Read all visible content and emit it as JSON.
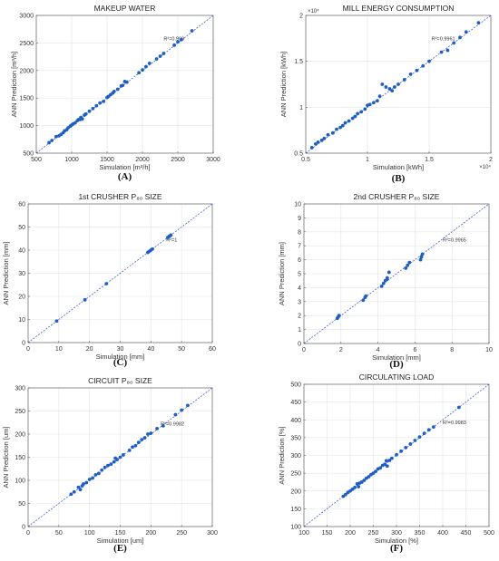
{
  "chart_data": [
    {
      "type": "scatter",
      "letter": "(A)",
      "title": "MAKEUP WATER",
      "xlabel": "Simulation [m³/h]",
      "ylabel": "ANN Prediction [m³/h]",
      "xlim": [
        500,
        3000
      ],
      "ylim": [
        500,
        3000
      ],
      "xticks": [
        500,
        1000,
        1500,
        2000,
        2500,
        3000
      ],
      "yticks": [
        500,
        1000,
        1500,
        2000,
        2500,
        3000
      ],
      "annotation": "R²=0.999",
      "grid": true,
      "points": [
        [
          680,
          690
        ],
        [
          720,
          730
        ],
        [
          780,
          800
        ],
        [
          820,
          815
        ],
        [
          850,
          840
        ],
        [
          880,
          870
        ],
        [
          900,
          905
        ],
        [
          930,
          925
        ],
        [
          950,
          960
        ],
        [
          980,
          990
        ],
        [
          1000,
          1010
        ],
        [
          1020,
          1030
        ],
        [
          1050,
          1050
        ],
        [
          1080,
          1090
        ],
        [
          1100,
          1110
        ],
        [
          1120,
          1110
        ],
        [
          1130,
          1150
        ],
        [
          1150,
          1120
        ],
        [
          1180,
          1190
        ],
        [
          1200,
          1210
        ],
        [
          1250,
          1260
        ],
        [
          1300,
          1310
        ],
        [
          1350,
          1360
        ],
        [
          1400,
          1410
        ],
        [
          1450,
          1440
        ],
        [
          1500,
          1510
        ],
        [
          1520,
          1530
        ],
        [
          1550,
          1560
        ],
        [
          1580,
          1590
        ],
        [
          1600,
          1620
        ],
        [
          1650,
          1660
        ],
        [
          1700,
          1720
        ],
        [
          1720,
          1730
        ],
        [
          1750,
          1800
        ],
        [
          1780,
          1790
        ],
        [
          1950,
          1960
        ],
        [
          2000,
          2010
        ],
        [
          2050,
          2070
        ],
        [
          2100,
          2130
        ],
        [
          2200,
          2210
        ],
        [
          2250,
          2260
        ],
        [
          2300,
          2310
        ],
        [
          2450,
          2460
        ],
        [
          2500,
          2520
        ],
        [
          2550,
          2560
        ],
        [
          2700,
          2720
        ]
      ]
    },
    {
      "type": "scatter",
      "letter": "(B)",
      "title": "MILL ENERGY CONSUMPTION",
      "xlabel": "Simulation [kWh]",
      "ylabel": "ANN Prediction [kWh]",
      "xlim": [
        0.5,
        2
      ],
      "ylim": [
        0.5,
        2
      ],
      "xticks": [
        0.5,
        1,
        1.5,
        2
      ],
      "yticks": [
        0.5,
        1,
        1.5,
        2
      ],
      "exponent": "×10⁴",
      "annotation": "R²=0.9961",
      "grid": true,
      "points": [
        [
          0.55,
          0.56
        ],
        [
          0.58,
          0.6
        ],
        [
          0.6,
          0.62
        ],
        [
          0.63,
          0.64
        ],
        [
          0.65,
          0.66
        ],
        [
          0.68,
          0.7
        ],
        [
          0.72,
          0.72
        ],
        [
          0.75,
          0.76
        ],
        [
          0.78,
          0.78
        ],
        [
          0.8,
          0.8
        ],
        [
          0.82,
          0.83
        ],
        [
          0.85,
          0.85
        ],
        [
          0.88,
          0.88
        ],
        [
          0.9,
          0.9
        ],
        [
          0.92,
          0.93
        ],
        [
          0.95,
          0.95
        ],
        [
          0.98,
          0.98
        ],
        [
          1.0,
          1.02
        ],
        [
          1.02,
          1.03
        ],
        [
          1.05,
          1.05
        ],
        [
          1.08,
          1.07
        ],
        [
          1.1,
          1.12
        ],
        [
          1.12,
          1.25
        ],
        [
          1.15,
          1.22
        ],
        [
          1.18,
          1.2
        ],
        [
          1.2,
          1.18
        ],
        [
          1.22,
          1.22
        ],
        [
          1.25,
          1.25
        ],
        [
          1.3,
          1.3
        ],
        [
          1.35,
          1.36
        ],
        [
          1.4,
          1.4
        ],
        [
          1.45,
          1.45
        ],
        [
          1.5,
          1.5
        ],
        [
          1.6,
          1.6
        ],
        [
          1.65,
          1.62
        ],
        [
          1.7,
          1.7
        ],
        [
          1.75,
          1.76
        ],
        [
          1.8,
          1.82
        ],
        [
          1.9,
          1.92
        ]
      ]
    },
    {
      "type": "scatter",
      "letter": "(C)",
      "title": "1st CRUSHER P₈₀ SIZE",
      "xlabel": "Simulation [mm]",
      "ylabel": "ANN Prediction [mm]",
      "xlim": [
        0,
        60
      ],
      "ylim": [
        0,
        60
      ],
      "xticks": [
        0,
        10,
        20,
        30,
        40,
        50,
        60
      ],
      "yticks": [
        0,
        10,
        20,
        30,
        40,
        50,
        60
      ],
      "annotation": "R²=1",
      "grid": true,
      "points": [
        [
          9.3,
          9.3
        ],
        [
          18.5,
          18.5
        ],
        [
          25.5,
          25.5
        ],
        [
          39,
          39
        ],
        [
          39.5,
          39.5
        ],
        [
          40,
          40
        ],
        [
          40.5,
          40.5
        ],
        [
          45.5,
          45.5
        ],
        [
          46,
          46
        ],
        [
          46.5,
          46.5
        ]
      ]
    },
    {
      "type": "scatter",
      "letter": "(D)",
      "title": "2nd CRUSHER P₈₀ SIZE",
      "xlabel": "Simulation [mm]",
      "ylabel": "ANN Prediction [mm]",
      "xlim": [
        0,
        10
      ],
      "ylim": [
        0,
        10
      ],
      "xticks": [
        0,
        2,
        4,
        6,
        8,
        10
      ],
      "yticks": [
        0,
        1,
        2,
        3,
        4,
        5,
        6,
        7,
        8,
        9,
        10
      ],
      "annotation": "R²=0.9965",
      "grid": true,
      "points": [
        [
          1.8,
          1.8
        ],
        [
          1.85,
          1.9
        ],
        [
          1.9,
          2.0
        ],
        [
          3.2,
          3.1
        ],
        [
          3.3,
          3.3
        ],
        [
          3.35,
          3.4
        ],
        [
          4.2,
          4.1
        ],
        [
          4.3,
          4.3
        ],
        [
          4.4,
          4.5
        ],
        [
          4.5,
          4.7
        ],
        [
          4.6,
          5.1
        ],
        [
          4.5,
          4.6
        ],
        [
          5.5,
          5.4
        ],
        [
          5.6,
          5.6
        ],
        [
          5.7,
          5.8
        ],
        [
          6.3,
          6.0
        ],
        [
          6.35,
          6.2
        ],
        [
          6.4,
          6.4
        ]
      ]
    },
    {
      "type": "scatter",
      "letter": "(E)",
      "title": "CIRCUIT P₈₀ SIZE",
      "xlabel": "Simulation [um]",
      "ylabel": "ANN Prediction [um]",
      "xlim": [
        0,
        300
      ],
      "ylim": [
        0,
        300
      ],
      "xticks": [
        0,
        50,
        100,
        150,
        200,
        250,
        300
      ],
      "yticks": [
        0,
        50,
        100,
        150,
        200,
        250,
        300
      ],
      "annotation": "R²=0.9982",
      "grid": true,
      "points": [
        [
          70,
          70
        ],
        [
          75,
          75
        ],
        [
          82,
          85
        ],
        [
          85,
          80
        ],
        [
          88,
          88
        ],
        [
          90,
          92
        ],
        [
          95,
          95
        ],
        [
          100,
          102
        ],
        [
          105,
          105
        ],
        [
          110,
          112
        ],
        [
          115,
          115
        ],
        [
          120,
          122
        ],
        [
          125,
          128
        ],
        [
          130,
          132
        ],
        [
          135,
          135
        ],
        [
          140,
          140
        ],
        [
          142,
          148
        ],
        [
          145,
          145
        ],
        [
          150,
          150
        ],
        [
          155,
          155
        ],
        [
          165,
          165
        ],
        [
          170,
          172
        ],
        [
          175,
          175
        ],
        [
          180,
          182
        ],
        [
          185,
          188
        ],
        [
          190,
          192
        ],
        [
          195,
          200
        ],
        [
          200,
          202
        ],
        [
          210,
          212
        ],
        [
          220,
          218
        ],
        [
          240,
          242
        ],
        [
          250,
          252
        ],
        [
          260,
          262
        ]
      ]
    },
    {
      "type": "scatter",
      "letter": "(F)",
      "title": "CIRCULATING LOAD",
      "xlabel": "Simulation [%]",
      "ylabel": "ANN Prediction [%]",
      "xlim": [
        100,
        500
      ],
      "ylim": [
        100,
        500
      ],
      "xticks": [
        100,
        150,
        200,
        250,
        300,
        350,
        400,
        450,
        500
      ],
      "yticks": [
        100,
        150,
        200,
        250,
        300,
        350,
        400,
        450,
        500
      ],
      "annotation": "R²=0.9983",
      "grid": true,
      "points": [
        [
          185,
          185
        ],
        [
          190,
          190
        ],
        [
          195,
          196
        ],
        [
          200,
          200
        ],
        [
          205,
          205
        ],
        [
          210,
          210
        ],
        [
          215,
          220
        ],
        [
          218,
          212
        ],
        [
          220,
          222
        ],
        [
          225,
          225
        ],
        [
          230,
          230
        ],
        [
          235,
          236
        ],
        [
          240,
          240
        ],
        [
          245,
          246
        ],
        [
          250,
          250
        ],
        [
          255,
          255
        ],
        [
          260,
          262
        ],
        [
          265,
          265
        ],
        [
          270,
          272
        ],
        [
          275,
          275
        ],
        [
          278,
          285
        ],
        [
          280,
          270
        ],
        [
          285,
          286
        ],
        [
          290,
          292
        ],
        [
          300,
          302
        ],
        [
          310,
          312
        ],
        [
          320,
          322
        ],
        [
          330,
          332
        ],
        [
          340,
          342
        ],
        [
          350,
          352
        ],
        [
          360,
          362
        ],
        [
          370,
          372
        ],
        [
          380,
          380
        ],
        [
          435,
          435
        ]
      ]
    }
  ]
}
